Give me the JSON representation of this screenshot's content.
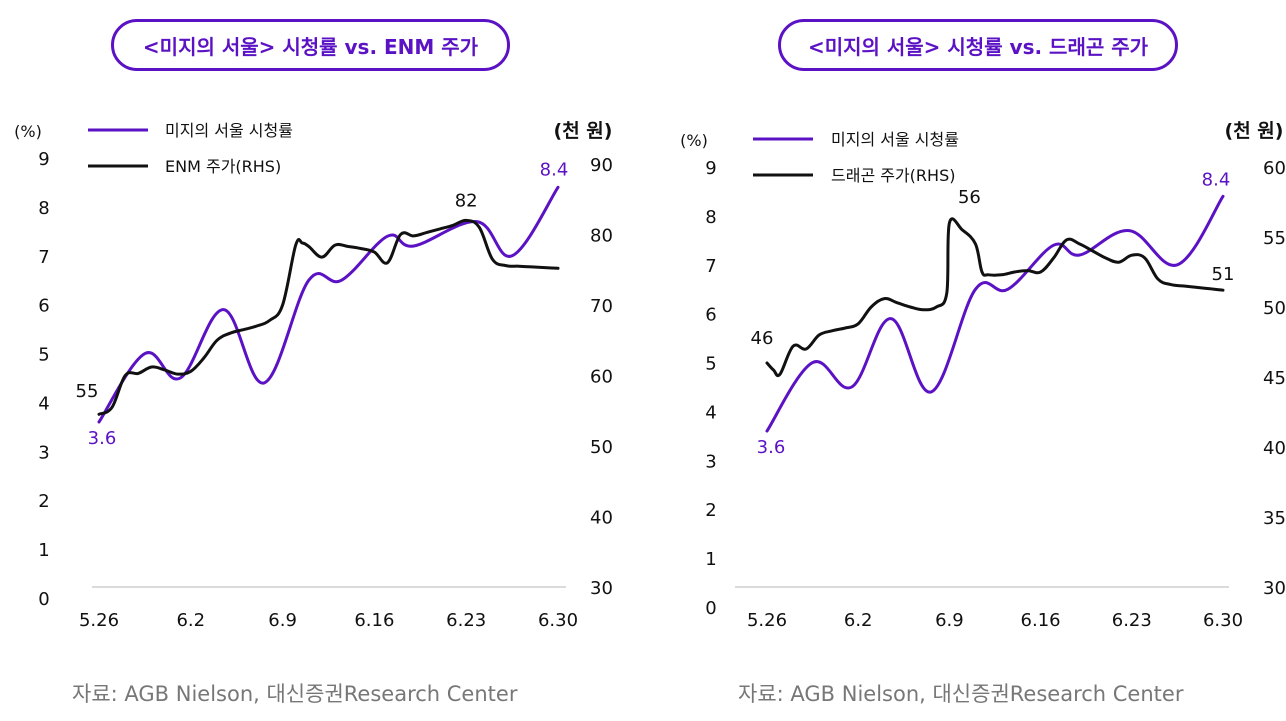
{
  "colors": {
    "purple": "#5b12c4",
    "black": "#111111",
    "axis": "#cfcfcf",
    "source": "#777777"
  },
  "chart_data": [
    {
      "type": "line",
      "title": "<미지의 서울> 시청률 vs. ENM 주가",
      "source": "자료: AGB Nielson, 대신증권Research Center",
      "xlabel": "",
      "ylabel": "(%)",
      "y2label": "(천 원)",
      "x_tick_labels": [
        "5.26",
        "6.2",
        "6.9",
        "6.16",
        "6.23",
        "6.30"
      ],
      "x_tick_positions": [
        0,
        7,
        14,
        21,
        28,
        35
      ],
      "y_ticks": [
        "0",
        "1",
        "2",
        "3",
        "4",
        "5",
        "6",
        "7",
        "8",
        "9"
      ],
      "ylim": [
        0,
        9
      ],
      "y2_ticks": [
        "30",
        "40",
        "50",
        "60",
        "70",
        "80",
        "90"
      ],
      "y2lim": [
        30,
        90
      ],
      "legend_placement": "top-left",
      "series": [
        {
          "name": "미지의 서울 시청률",
          "axis": "left",
          "color": "#5b12c4",
          "x": [
            0,
            3.5,
            6.2,
            9.5,
            12.6,
            16,
            18.5,
            22,
            24,
            28.8,
            31.5,
            35
          ],
          "values": [
            3.6,
            5.0,
            4.5,
            5.9,
            4.4,
            6.5,
            6.5,
            7.4,
            7.2,
            7.7,
            7.0,
            8.4
          ]
        },
        {
          "name": "ENM 주가(RHS)",
          "axis": "right",
          "color": "#111111",
          "x": [
            0,
            1,
            2,
            3,
            4,
            5,
            6,
            7,
            8,
            9,
            10,
            11,
            12,
            13,
            14,
            15,
            15.5,
            16,
            17,
            18,
            19,
            20,
            21,
            22,
            23,
            24,
            25,
            26,
            27,
            28,
            29,
            30,
            31,
            32,
            33,
            34,
            35
          ],
          "values": [
            54.5,
            55.5,
            60,
            60.3,
            61.2,
            60.8,
            60.2,
            60.6,
            62.5,
            65,
            66,
            66.5,
            67,
            67.8,
            70,
            78.5,
            78.8,
            78.3,
            76.8,
            78.5,
            78.3,
            78,
            77.5,
            76,
            80,
            79.8,
            80.3,
            80.8,
            81.3,
            82,
            81,
            76.5,
            75.6,
            75.5,
            75.4,
            75.3,
            75.2
          ]
        }
      ],
      "annotations": [
        {
          "text": "55",
          "x": 0,
          "value": 55,
          "axis": "right",
          "color": "#111111"
        },
        {
          "text": "3.6",
          "x": 0,
          "value": 3.6,
          "axis": "left",
          "color": "#5b12c4"
        },
        {
          "text": "82",
          "x": 28,
          "value": 82,
          "axis": "right",
          "color": "#111111"
        },
        {
          "text": "8.4",
          "x": 35,
          "value": 8.4,
          "axis": "left",
          "color": "#5b12c4"
        }
      ]
    },
    {
      "type": "line",
      "title": "<미지의 서울> 시청률 vs. 드래곤 주가",
      "source": "자료: AGB Nielson, 대신증권Research Center",
      "xlabel": "",
      "ylabel": "(%)",
      "y2label": "(천 원)",
      "x_tick_labels": [
        "5.26",
        "6.2",
        "6.9",
        "6.16",
        "6.23",
        "6.30"
      ],
      "x_tick_positions": [
        0,
        7,
        14,
        21,
        28,
        35
      ],
      "y_ticks": [
        "0",
        "1",
        "2",
        "3",
        "4",
        "5",
        "6",
        "7",
        "8",
        "9"
      ],
      "ylim": [
        0,
        9
      ],
      "y2_ticks": [
        "30",
        "35",
        "40",
        "45",
        "50",
        "55",
        "60"
      ],
      "y2lim": [
        30,
        60
      ],
      "legend_placement": "top-left",
      "series": [
        {
          "name": "미지의 서울 시청률",
          "axis": "left",
          "color": "#5b12c4",
          "x": [
            0,
            3.5,
            6.5,
            9.5,
            12.6,
            16,
            18.5,
            22,
            24,
            27.8,
            31.5,
            35
          ],
          "values": [
            3.6,
            5.0,
            4.5,
            5.9,
            4.4,
            6.5,
            6.5,
            7.4,
            7.2,
            7.7,
            7.0,
            8.4
          ]
        },
        {
          "name": "드래곤 주가(RHS)",
          "axis": "right",
          "color": "#111111",
          "x": [
            0,
            0.5,
            1,
            2,
            3,
            4,
            5,
            6,
            7,
            8,
            9,
            10,
            11,
            12,
            13,
            13.8,
            14,
            15,
            16,
            16.5,
            17,
            18,
            19,
            20,
            21,
            22,
            23,
            24,
            25,
            26,
            27,
            28,
            29,
            30,
            31,
            32,
            33,
            34,
            35
          ],
          "values": [
            46,
            45.5,
            45.2,
            47.2,
            47,
            48,
            48.3,
            48.5,
            48.8,
            50,
            50.6,
            50.3,
            50,
            49.8,
            50,
            51,
            56,
            55.5,
            54.5,
            52.5,
            52.3,
            52.3,
            52.5,
            52.6,
            52.5,
            53.5,
            54.8,
            54.5,
            54,
            53.5,
            53.2,
            53.7,
            53.5,
            52,
            51.6,
            51.5,
            51.4,
            51.3,
            51.2
          ]
        }
      ],
      "annotations": [
        {
          "text": "46",
          "x": 0,
          "value": 46,
          "axis": "right",
          "color": "#111111"
        },
        {
          "text": "3.6",
          "x": 0,
          "value": 3.6,
          "axis": "left",
          "color": "#5b12c4"
        },
        {
          "text": "56",
          "x": 14,
          "value": 56,
          "axis": "right",
          "color": "#111111"
        },
        {
          "text": "51",
          "x": 35,
          "value": 51,
          "axis": "right",
          "color": "#111111"
        },
        {
          "text": "8.4",
          "x": 35,
          "value": 8.4,
          "axis": "left",
          "color": "#5b12c4"
        }
      ]
    }
  ]
}
